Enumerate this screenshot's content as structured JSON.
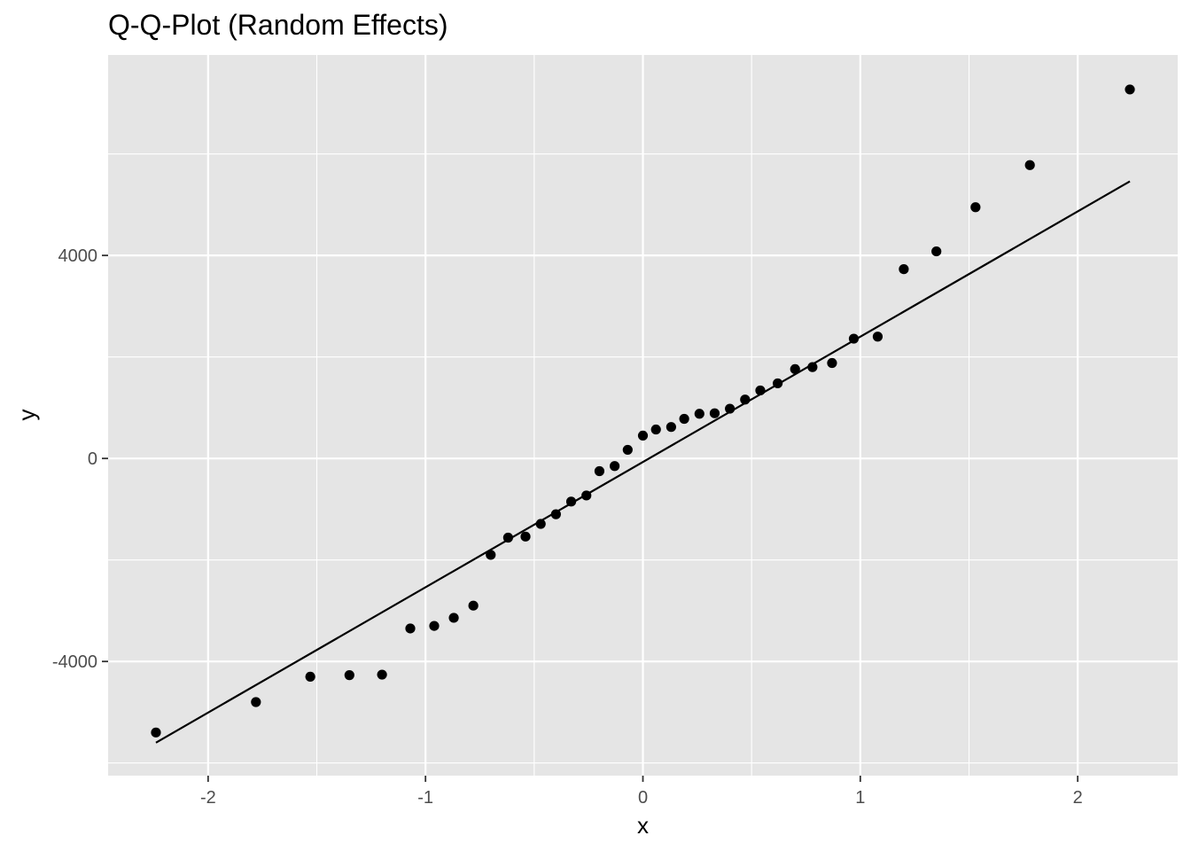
{
  "chart_data": {
    "type": "scatter",
    "title": "Q-Q-Plot (Random Effects)",
    "xlabel": "x",
    "ylabel": "y",
    "xlim": [
      -2.46,
      2.46
    ],
    "ylim": [
      -6250,
      7950
    ],
    "x_ticks": [
      -2,
      -1,
      0,
      1,
      2
    ],
    "x_tick_labels": [
      "-2",
      "-1",
      "0",
      "1",
      "2"
    ],
    "y_ticks": [
      -4000,
      0,
      4000
    ],
    "y_tick_labels": [
      "-4000",
      "0",
      "4000"
    ],
    "x_minor": [
      -1.5,
      -0.5,
      0.5,
      1.5
    ],
    "y_minor": [
      -6000,
      -2000,
      2000,
      6000
    ],
    "grid": true,
    "legend": "none",
    "colors": {
      "panel": "#e5e5e5",
      "grid": "#ffffff",
      "points": "#000000",
      "line": "#000000"
    },
    "reference_line": {
      "x": [
        -2.24,
        2.24
      ],
      "y": [
        -5600,
        5460
      ]
    },
    "points": [
      {
        "x": -2.24,
        "y": -5400
      },
      {
        "x": -1.78,
        "y": -4800
      },
      {
        "x": -1.53,
        "y": -4300
      },
      {
        "x": -1.35,
        "y": -4270
      },
      {
        "x": -1.2,
        "y": -4260
      },
      {
        "x": -1.07,
        "y": -3350
      },
      {
        "x": -0.96,
        "y": -3300
      },
      {
        "x": -0.87,
        "y": -3140
      },
      {
        "x": -0.78,
        "y": -2900
      },
      {
        "x": -0.7,
        "y": -1900
      },
      {
        "x": -0.62,
        "y": -1560
      },
      {
        "x": -0.54,
        "y": -1540
      },
      {
        "x": -0.47,
        "y": -1290
      },
      {
        "x": -0.4,
        "y": -1100
      },
      {
        "x": -0.33,
        "y": -850
      },
      {
        "x": -0.26,
        "y": -730
      },
      {
        "x": -0.2,
        "y": -250
      },
      {
        "x": -0.13,
        "y": -150
      },
      {
        "x": -0.07,
        "y": 170
      },
      {
        "x": 0.0,
        "y": 450
      },
      {
        "x": 0.06,
        "y": 570
      },
      {
        "x": 0.13,
        "y": 620
      },
      {
        "x": 0.19,
        "y": 780
      },
      {
        "x": 0.26,
        "y": 880
      },
      {
        "x": 0.33,
        "y": 890
      },
      {
        "x": 0.4,
        "y": 980
      },
      {
        "x": 0.47,
        "y": 1160
      },
      {
        "x": 0.54,
        "y": 1340
      },
      {
        "x": 0.62,
        "y": 1480
      },
      {
        "x": 0.7,
        "y": 1760
      },
      {
        "x": 0.78,
        "y": 1800
      },
      {
        "x": 0.87,
        "y": 1880
      },
      {
        "x": 0.97,
        "y": 2360
      },
      {
        "x": 1.08,
        "y": 2400
      },
      {
        "x": 1.2,
        "y": 3730
      },
      {
        "x": 1.35,
        "y": 4080
      },
      {
        "x": 1.53,
        "y": 4950
      },
      {
        "x": 1.78,
        "y": 5780
      },
      {
        "x": 2.24,
        "y": 7270
      }
    ]
  }
}
